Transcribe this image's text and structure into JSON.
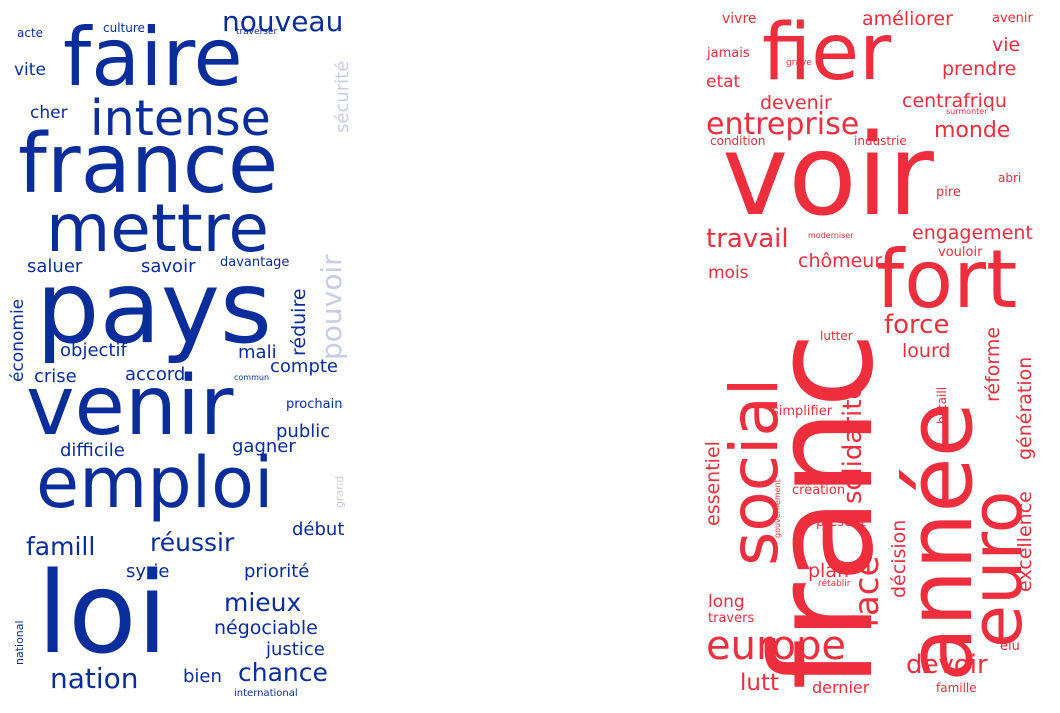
{
  "colors": {
    "blue": "#0a2d9c",
    "blue_light": "#c7cde3",
    "red": "#ee2d3d"
  },
  "left_cloud": {
    "words": [
      {
        "text": "acte",
        "color": "blue"
      },
      {
        "text": "culture",
        "color": "blue"
      },
      {
        "text": "traverser",
        "color": "blue"
      },
      {
        "text": "faire",
        "color": "blue"
      },
      {
        "text": "nouveau",
        "color": "blue"
      },
      {
        "text": "vite",
        "color": "blue"
      },
      {
        "text": "sécurité",
        "color": "blue_light"
      },
      {
        "text": "intense",
        "color": "blue"
      },
      {
        "text": "cher",
        "color": "blue"
      },
      {
        "text": "france",
        "color": "blue"
      },
      {
        "text": "mettre",
        "color": "blue"
      },
      {
        "text": "pouvoir",
        "color": "blue_light"
      },
      {
        "text": "saluer",
        "color": "blue"
      },
      {
        "text": "savoir",
        "color": "blue"
      },
      {
        "text": "davantage",
        "color": "blue"
      },
      {
        "text": "pays",
        "color": "blue"
      },
      {
        "text": "réduire",
        "color": "blue"
      },
      {
        "text": "économie",
        "color": "blue"
      },
      {
        "text": "objectif",
        "color": "blue"
      },
      {
        "text": "mali",
        "color": "blue"
      },
      {
        "text": "compte",
        "color": "blue"
      },
      {
        "text": "crise",
        "color": "blue"
      },
      {
        "text": "accord",
        "color": "blue"
      },
      {
        "text": "commun",
        "color": "blue"
      },
      {
        "text": "venir",
        "color": "blue"
      },
      {
        "text": "prochain",
        "color": "blue"
      },
      {
        "text": "public",
        "color": "blue"
      },
      {
        "text": "difficile",
        "color": "blue"
      },
      {
        "text": "gagner",
        "color": "blue"
      },
      {
        "text": "emploi",
        "color": "blue"
      },
      {
        "text": "grand",
        "color": "blue_light"
      },
      {
        "text": "début",
        "color": "blue"
      },
      {
        "text": "famill",
        "color": "blue"
      },
      {
        "text": "réussir",
        "color": "blue"
      },
      {
        "text": "syrie",
        "color": "blue"
      },
      {
        "text": "priorité",
        "color": "blue"
      },
      {
        "text": "loi",
        "color": "blue"
      },
      {
        "text": "mieux",
        "color": "blue"
      },
      {
        "text": "national",
        "color": "blue"
      },
      {
        "text": "négociable",
        "color": "blue"
      },
      {
        "text": "justice",
        "color": "blue"
      },
      {
        "text": "chance",
        "color": "blue"
      },
      {
        "text": "nation",
        "color": "blue"
      },
      {
        "text": "bien",
        "color": "blue"
      },
      {
        "text": "international",
        "color": "blue"
      }
    ]
  },
  "right_cloud": {
    "words": [
      {
        "text": "vivre",
        "color": "red"
      },
      {
        "text": "améliorer",
        "color": "red"
      },
      {
        "text": "avenir",
        "color": "red"
      },
      {
        "text": "fier",
        "color": "red"
      },
      {
        "text": "jamais",
        "color": "red"
      },
      {
        "text": "grave",
        "color": "red"
      },
      {
        "text": "vie",
        "color": "red"
      },
      {
        "text": "etat",
        "color": "red"
      },
      {
        "text": "prendre",
        "color": "red"
      },
      {
        "text": "devenir",
        "color": "red"
      },
      {
        "text": "centrafriqu",
        "color": "red"
      },
      {
        "text": "surmonter",
        "color": "red"
      },
      {
        "text": "entreprise",
        "color": "red"
      },
      {
        "text": "monde",
        "color": "red"
      },
      {
        "text": "condition",
        "color": "red"
      },
      {
        "text": "industrie",
        "color": "red"
      },
      {
        "text": "voir",
        "color": "red"
      },
      {
        "text": "abri",
        "color": "red"
      },
      {
        "text": "pire",
        "color": "red"
      },
      {
        "text": "engagement",
        "color": "red"
      },
      {
        "text": "travail",
        "color": "red"
      },
      {
        "text": "moderniser",
        "color": "red"
      },
      {
        "text": "vouloir",
        "color": "red"
      },
      {
        "text": "chômeur",
        "color": "red"
      },
      {
        "text": "mois",
        "color": "red"
      },
      {
        "text": "fort",
        "color": "red"
      },
      {
        "text": "social",
        "color": "red"
      },
      {
        "text": "force",
        "color": "red"
      },
      {
        "text": "réforme",
        "color": "red"
      },
      {
        "text": "franc",
        "color": "red"
      },
      {
        "text": "lutter",
        "color": "red"
      },
      {
        "text": "solidarité",
        "color": "red"
      },
      {
        "text": "lourd",
        "color": "red"
      },
      {
        "text": "année",
        "color": "red"
      },
      {
        "text": "simplifier",
        "color": "red"
      },
      {
        "text": "bataill",
        "color": "red"
      },
      {
        "text": "essentiel",
        "color": "red"
      },
      {
        "text": "génération",
        "color": "red"
      },
      {
        "text": "gouvernement",
        "color": "red"
      },
      {
        "text": "création",
        "color": "red"
      },
      {
        "text": "euro",
        "color": "red"
      },
      {
        "text": "face",
        "color": "red"
      },
      {
        "text": "présent",
        "color": "red"
      },
      {
        "text": "décision",
        "color": "red"
      },
      {
        "text": "excellence",
        "color": "red"
      },
      {
        "text": "rétablir",
        "color": "red"
      },
      {
        "text": "plan",
        "color": "red"
      },
      {
        "text": "long",
        "color": "red"
      },
      {
        "text": "travers",
        "color": "red"
      },
      {
        "text": "europe",
        "color": "red"
      },
      {
        "text": "élu",
        "color": "red"
      },
      {
        "text": "devoir",
        "color": "red"
      },
      {
        "text": "lutt",
        "color": "red"
      },
      {
        "text": "dernier",
        "color": "red"
      },
      {
        "text": "famille",
        "color": "red"
      }
    ]
  }
}
